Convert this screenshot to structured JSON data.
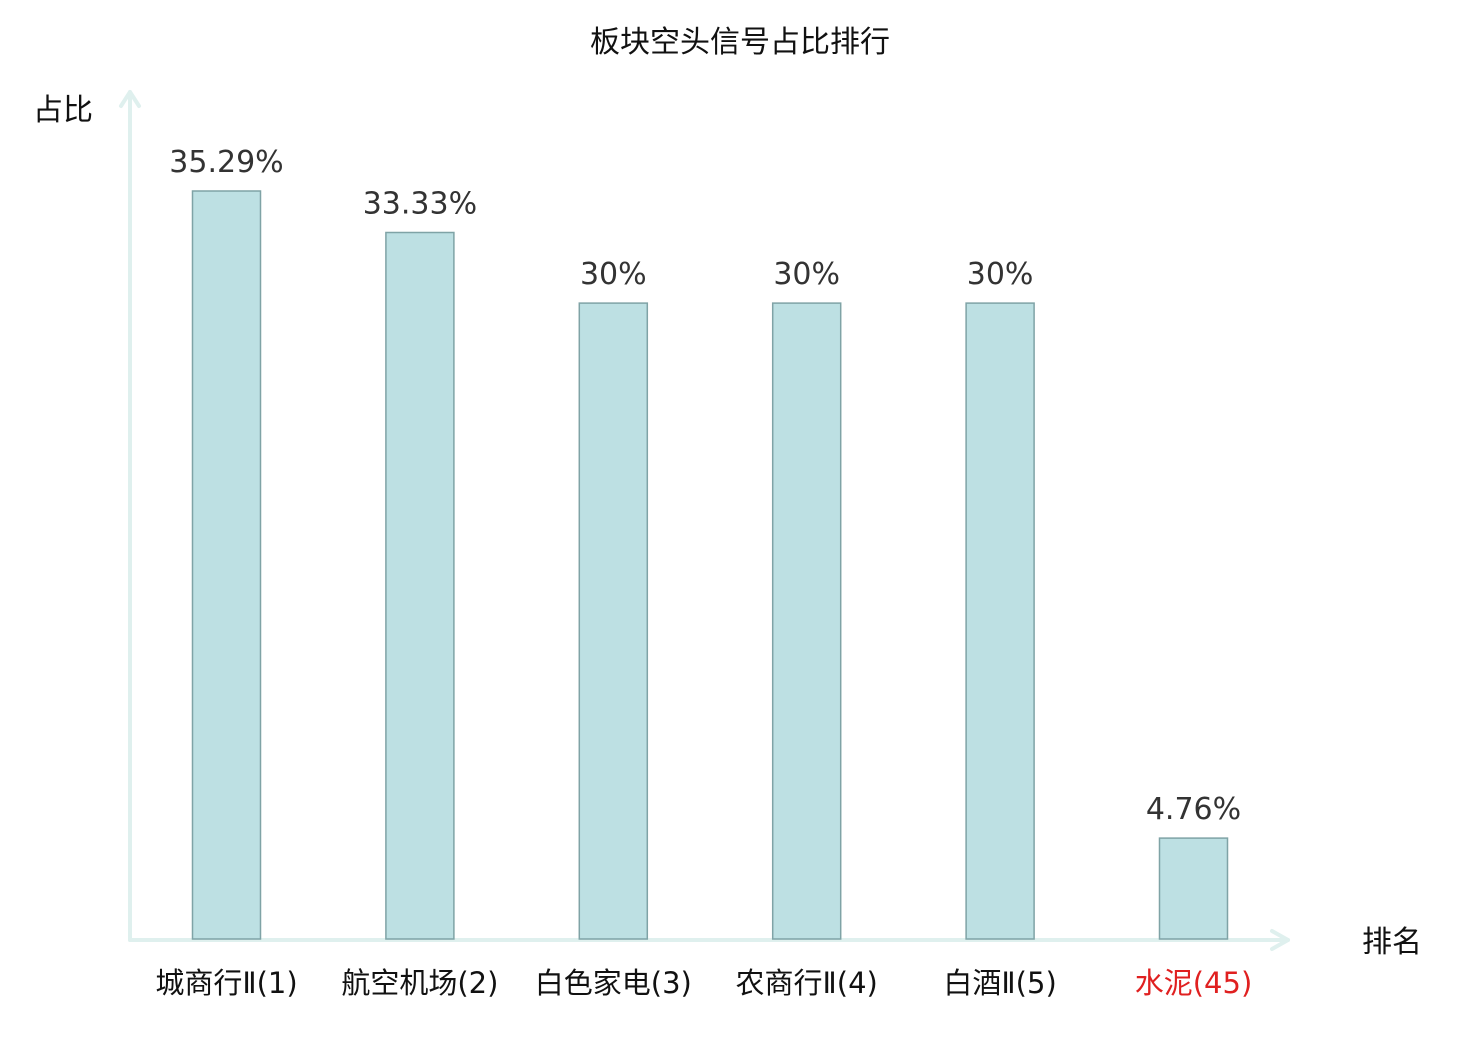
{
  "chart_data": {
    "type": "bar",
    "title": "板块空头信号占比排行",
    "ylabel": "占比",
    "xlabel": "排名",
    "categories": [
      "城商行Ⅱ(1)",
      "航空机场(2)",
      "白色家电(3)",
      "农商行Ⅱ(4)",
      "白酒Ⅱ(5)",
      "水泥(45)"
    ],
    "values": [
      35.29,
      33.33,
      30,
      30,
      30,
      4.76
    ],
    "value_labels": [
      "35.29%",
      "33.33%",
      "30%",
      "30%",
      "30%",
      "4.76%"
    ],
    "highlight_index": 5,
    "ylim": [
      0,
      40
    ],
    "grid": false,
    "legend": "none"
  },
  "colors": {
    "bar_fill": "#bde0e3",
    "bar_stroke": "#7fa3a6",
    "axis": "#dff0ee",
    "text": "#111111",
    "value_text": "#333333",
    "highlight": "#e02020"
  }
}
